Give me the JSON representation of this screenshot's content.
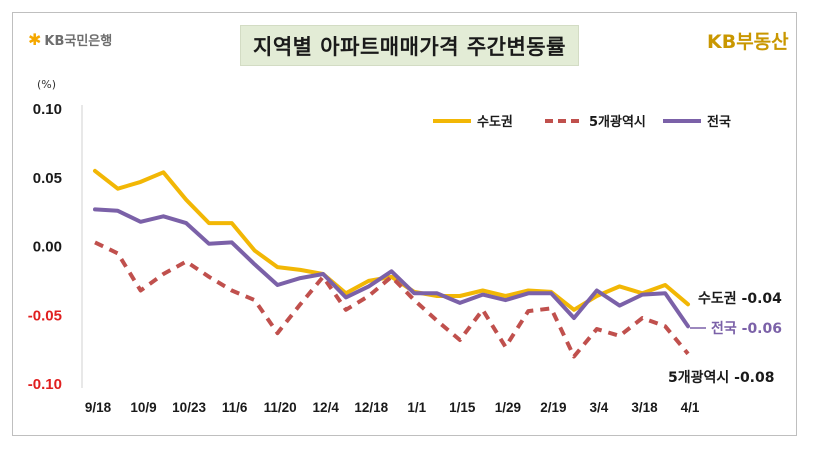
{
  "header": {
    "bank_logo_text": "KB국민은행",
    "title": "지역별 아파트매매가격 주간변동률",
    "brand_text": "KB부동산"
  },
  "chart_data": {
    "type": "line",
    "title": "지역별 아파트매매가격 주간변동률",
    "ylabel": "(%)",
    "ylim": [
      -0.1,
      0.1
    ],
    "yticks": [
      0.1,
      0.05,
      0.0,
      -0.05,
      -0.1
    ],
    "ytick_labels": [
      "0.10",
      "0.05",
      "0.00",
      "-0.05",
      "-0.10"
    ],
    "xtick_labels": [
      "9/18",
      "10/9",
      "10/23",
      "11/6",
      "11/20",
      "12/4",
      "12/18",
      "1/1",
      "1/15",
      "1/29",
      "2/19",
      "3/4",
      "3/18",
      "4/1"
    ],
    "series": [
      {
        "name": "수도권",
        "color": "#f2b705",
        "dash": "solid",
        "values": [
          0.055,
          0.042,
          0.047,
          0.054,
          0.034,
          0.017,
          0.017,
          -0.003,
          -0.015,
          -0.017,
          -0.02,
          -0.034,
          -0.025,
          -0.022,
          -0.033,
          -0.036,
          -0.036,
          -0.032,
          -0.036,
          -0.032,
          -0.033,
          -0.046,
          -0.036,
          -0.029,
          -0.034,
          -0.028,
          -0.042
        ],
        "end_label": "수도권 -0.04"
      },
      {
        "name": "5개광역시",
        "color": "#c0504d",
        "dash": "dashed",
        "values": [
          0.003,
          -0.005,
          -0.032,
          -0.02,
          -0.011,
          -0.022,
          -0.032,
          -0.039,
          -0.063,
          -0.042,
          -0.022,
          -0.046,
          -0.036,
          -0.022,
          -0.039,
          -0.054,
          -0.068,
          -0.046,
          -0.073,
          -0.047,
          -0.045,
          -0.08,
          -0.06,
          -0.065,
          -0.052,
          -0.058,
          -0.078
        ],
        "end_label": "5개광역시 -0.08"
      },
      {
        "name": "전국",
        "color": "#7b61a8",
        "dash": "solid",
        "values": [
          0.027,
          0.026,
          0.018,
          0.022,
          0.017,
          0.002,
          0.003,
          -0.013,
          -0.028,
          -0.023,
          -0.02,
          -0.037,
          -0.029,
          -0.018,
          -0.034,
          -0.034,
          -0.041,
          -0.035,
          -0.039,
          -0.034,
          -0.034,
          -0.052,
          -0.032,
          -0.043,
          -0.035,
          -0.034,
          -0.058
        ],
        "end_label": "전국 -0.06"
      }
    ],
    "legend_position": "top-right"
  }
}
